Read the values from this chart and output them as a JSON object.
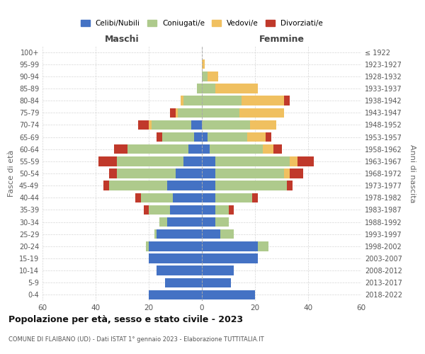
{
  "age_groups": [
    "0-4",
    "5-9",
    "10-14",
    "15-19",
    "20-24",
    "25-29",
    "30-34",
    "35-39",
    "40-44",
    "45-49",
    "50-54",
    "55-59",
    "60-64",
    "65-69",
    "70-74",
    "75-79",
    "80-84",
    "85-89",
    "90-94",
    "95-99",
    "100+"
  ],
  "birth_years": [
    "2018-2022",
    "2013-2017",
    "2008-2012",
    "2003-2007",
    "1998-2002",
    "1993-1997",
    "1988-1992",
    "1983-1987",
    "1978-1982",
    "1973-1977",
    "1968-1972",
    "1963-1967",
    "1958-1962",
    "1953-1957",
    "1948-1952",
    "1943-1947",
    "1938-1942",
    "1933-1937",
    "1928-1932",
    "1923-1927",
    "≤ 1922"
  ],
  "colors": {
    "celibi": "#4472C4",
    "coniugati": "#AECA8C",
    "vedovi": "#F0C060",
    "divorziati": "#C0392B"
  },
  "maschi": {
    "celibi": [
      20,
      14,
      17,
      20,
      20,
      17,
      13,
      12,
      11,
      13,
      10,
      7,
      5,
      3,
      4,
      0,
      0,
      0,
      0,
      0,
      0
    ],
    "coniugati": [
      0,
      0,
      0,
      0,
      1,
      1,
      3,
      8,
      12,
      22,
      22,
      25,
      23,
      12,
      15,
      9,
      7,
      2,
      0,
      0,
      0
    ],
    "vedovi": [
      0,
      0,
      0,
      0,
      0,
      0,
      0,
      0,
      0,
      0,
      0,
      0,
      0,
      0,
      1,
      1,
      1,
      0,
      0,
      0,
      0
    ],
    "divorziati": [
      0,
      0,
      0,
      0,
      0,
      0,
      0,
      2,
      2,
      2,
      3,
      7,
      5,
      2,
      4,
      2,
      0,
      0,
      0,
      0,
      0
    ]
  },
  "femmine": {
    "celibi": [
      20,
      11,
      12,
      21,
      21,
      7,
      5,
      5,
      5,
      5,
      5,
      5,
      3,
      2,
      0,
      0,
      0,
      0,
      0,
      0,
      0
    ],
    "coniugati": [
      0,
      0,
      0,
      0,
      4,
      5,
      5,
      5,
      14,
      27,
      26,
      28,
      20,
      15,
      18,
      14,
      15,
      5,
      2,
      0,
      0
    ],
    "vedovi": [
      0,
      0,
      0,
      0,
      0,
      0,
      0,
      0,
      0,
      0,
      2,
      3,
      4,
      7,
      10,
      17,
      16,
      16,
      4,
      1,
      0
    ],
    "divorziati": [
      0,
      0,
      0,
      0,
      0,
      0,
      0,
      2,
      2,
      2,
      5,
      6,
      3,
      2,
      0,
      0,
      2,
      0,
      0,
      0,
      0
    ]
  },
  "xlim": 60,
  "title": "Popolazione per età, sesso e stato civile - 2023",
  "subtitle": "COMUNE DI FLAIBANO (UD) - Dati ISTAT 1° gennaio 2023 - Elaborazione TUTTITALIA.IT",
  "xlabel_left": "Maschi",
  "xlabel_right": "Femmine",
  "ylabel_left": "Fasce di età",
  "ylabel_right": "Anni di nascita",
  "legend_labels": [
    "Celibi/Nubili",
    "Coniugati/e",
    "Vedovi/e",
    "Divorziati/e"
  ],
  "background_color": "#ffffff",
  "grid_color": "#cccccc"
}
